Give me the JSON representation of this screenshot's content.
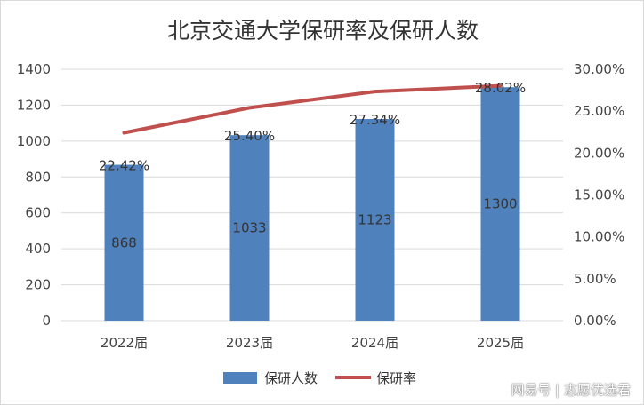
{
  "chart_data": {
    "type": "bar",
    "title": "北京交通大学保研率及保研人数",
    "categories": [
      "2022届",
      "2023届",
      "2024届",
      "2025届"
    ],
    "series": [
      {
        "name": "保研人数",
        "type": "bar",
        "axis": "left",
        "color": "#4f81bd",
        "values": [
          868,
          1033,
          1123,
          1300
        ],
        "labels": [
          "868",
          "1033",
          "1123",
          "1300"
        ]
      },
      {
        "name": "保研率",
        "type": "line",
        "axis": "right",
        "color": "#c0504d",
        "values": [
          0.2242,
          0.254,
          0.2734,
          0.2802
        ],
        "labels": [
          "22.42%",
          "25.40%",
          "27.34%",
          "28.02%"
        ]
      }
    ],
    "ylim_left": [
      0,
      1400
    ],
    "ylim_right": [
      0,
      0.3
    ],
    "yticks_left": [
      "0",
      "200",
      "400",
      "600",
      "800",
      "1000",
      "1200",
      "1400"
    ],
    "yticks_right": [
      "0.00%",
      "5.00%",
      "10.00%",
      "15.00%",
      "20.00%",
      "25.00%",
      "30.00%"
    ],
    "grid": true,
    "legend_position": "bottom"
  },
  "watermark": "网易号 | 志愿优选君"
}
